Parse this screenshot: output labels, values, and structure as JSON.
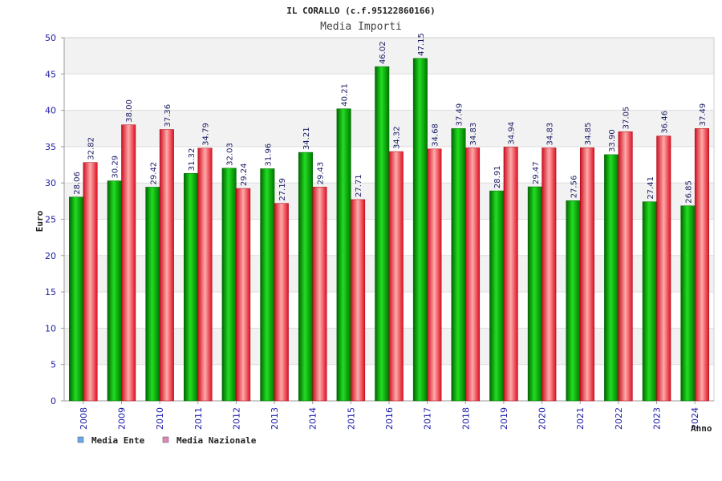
{
  "chart_data": {
    "type": "bar",
    "title": "IL CORALLO (c.f.95122860166)",
    "subtitle": "Media Importi",
    "xlabel": "Anno",
    "ylabel": "Euro",
    "ylim": [
      0,
      50
    ],
    "yticks": [
      0,
      5,
      10,
      15,
      20,
      25,
      30,
      35,
      40,
      45,
      50
    ],
    "grid": true,
    "legend_position": "bottom-left",
    "categories": [
      "2008",
      "2009",
      "2010",
      "2011",
      "2012",
      "2013",
      "2014",
      "2015",
      "2016",
      "2017",
      "2018",
      "2019",
      "2020",
      "2021",
      "2022",
      "2023",
      "2024"
    ],
    "series": [
      {
        "name": "Media Ente",
        "color": "#00aa00",
        "legend_color": "#66aaee",
        "values": [
          28.06,
          30.29,
          29.42,
          31.32,
          32.03,
          31.96,
          34.21,
          40.21,
          46.02,
          47.15,
          37.49,
          28.91,
          29.47,
          27.56,
          33.9,
          27.41,
          26.85
        ],
        "labels": [
          "28.06",
          "30.29",
          "29.42",
          "31.32",
          "32.03",
          "31.96",
          "34.21",
          "40.21",
          "46.02",
          "47.15",
          "37.49",
          "28.91",
          "29.47",
          "27.56",
          "33.90",
          "27.41",
          "26.85"
        ]
      },
      {
        "name": "Media Nazionale",
        "color": "#ee2233",
        "legend_color": "#dd88bb",
        "values": [
          32.82,
          38.0,
          37.36,
          34.79,
          29.24,
          27.19,
          29.43,
          27.71,
          34.32,
          34.68,
          34.83,
          34.94,
          34.83,
          34.85,
          37.05,
          36.46,
          37.49
        ],
        "labels": [
          "32.82",
          "38.00",
          "37.36",
          "34.79",
          "29.24",
          "27.19",
          "29.43",
          "27.71",
          "34.32",
          "34.68",
          "34.83",
          "34.94",
          "34.83",
          "34.85",
          "37.05",
          "36.46",
          "37.49"
        ]
      }
    ]
  }
}
